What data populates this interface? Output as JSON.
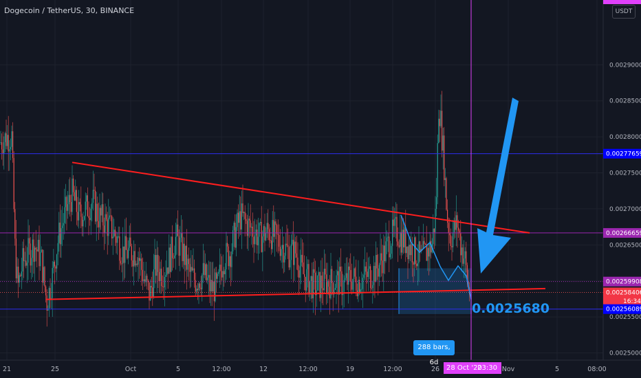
{
  "header": {
    "title": "Dogecoin / TetherUS, 30, BINANCE",
    "currency": "USDT"
  },
  "annotations": {
    "target_price": "0.0025680",
    "range_bars": "288 bars, 6d",
    "crosshair_date": "28 Oct '20",
    "crosshair_time": "23:30"
  },
  "price_tags": [
    {
      "label": "0.00277659",
      "value": 0.00277659,
      "color": "#0000ff"
    },
    {
      "label": "0.00266659",
      "value": 0.00266659,
      "color": "#9c27b0"
    },
    {
      "label": "0.00259908",
      "value": 0.00259908,
      "color": "#9c27b0"
    },
    {
      "label": "0.00258406",
      "value": 0.00258406,
      "color": "#f23645"
    },
    {
      "label": "16:34",
      "value": 0.002572,
      "color": "#f23645"
    },
    {
      "label": "0.00256089",
      "value": 0.00256089,
      "color": "#0000ff"
    }
  ],
  "colors": {
    "background": "#131722",
    "up": "#26a69a",
    "down": "#ef5350",
    "trendline": "#ff1e1e",
    "blue_line": "#2d2df0",
    "purple_line": "#9c27b0",
    "arrow": "#2196f3",
    "crosshair": "#e040fb"
  },
  "chart_data": {
    "type": "candlestick",
    "title": "Dogecoin / TetherUS, 30, BINANCE",
    "interval": "30",
    "ylim": [
      0.00249,
      0.00299
    ],
    "y_ticks": [
      "0.0025000",
      "0.0025500",
      "0.0026000",
      "0.0026500",
      "0.0027000",
      "0.0027500",
      "0.0028000",
      "0.0028500",
      "0.0029000"
    ],
    "x_ticks": [
      "21",
      "25",
      "Oct",
      "5",
      "12:00",
      "12",
      "12:00",
      "19",
      "12:00",
      "26",
      "Nov",
      "5",
      "08:00"
    ],
    "path": [
      [
        0,
        0.002792
      ],
      [
        10,
        0.0028
      ],
      [
        17,
        0.0028
      ],
      [
        22,
        0.00264
      ],
      [
        26,
        0.00259
      ],
      [
        33,
        0.002625
      ],
      [
        42,
        0.00264
      ],
      [
        50,
        0.00265
      ],
      [
        60,
        0.00263
      ],
      [
        68,
        0.00257
      ],
      [
        75,
        0.0026
      ],
      [
        85,
        0.00266
      ],
      [
        97,
        0.0027
      ],
      [
        105,
        0.00272
      ],
      [
        115,
        0.00269
      ],
      [
        125,
        0.0027
      ],
      [
        135,
        0.00271
      ],
      [
        143,
        0.00269
      ],
      [
        155,
        0.00268
      ],
      [
        163,
        0.00267
      ],
      [
        170,
        0.00266
      ],
      [
        178,
        0.00264
      ],
      [
        188,
        0.00264
      ],
      [
        200,
        0.00264
      ],
      [
        210,
        0.0026
      ],
      [
        218,
        0.00258
      ],
      [
        226,
        0.00262
      ],
      [
        236,
        0.00261
      ],
      [
        246,
        0.00263
      ],
      [
        256,
        0.00266
      ],
      [
        266,
        0.00264
      ],
      [
        276,
        0.00261
      ],
      [
        285,
        0.0026
      ],
      [
        296,
        0.00261
      ],
      [
        306,
        0.00259
      ],
      [
        316,
        0.00259
      ],
      [
        324,
        0.00263
      ],
      [
        335,
        0.00264
      ],
      [
        343,
        0.00267
      ],
      [
        350,
        0.00269
      ],
      [
        358,
        0.00268
      ],
      [
        368,
        0.00267
      ],
      [
        378,
        0.00266
      ],
      [
        390,
        0.00267
      ],
      [
        400,
        0.00266
      ],
      [
        410,
        0.00265
      ],
      [
        420,
        0.00264
      ],
      [
        430,
        0.00264
      ],
      [
        440,
        0.00261
      ],
      [
        450,
        0.0026
      ],
      [
        460,
        0.00259
      ],
      [
        470,
        0.002598
      ],
      [
        480,
        0.002598
      ],
      [
        490,
        0.0026
      ],
      [
        500,
        0.002595
      ],
      [
        510,
        0.002605
      ],
      [
        520,
        0.0026
      ],
      [
        530,
        0.002605
      ],
      [
        540,
        0.00261
      ],
      [
        550,
        0.00262
      ],
      [
        560,
        0.00264
      ],
      [
        568,
        0.00266
      ],
      [
        576,
        0.00267
      ],
      [
        584,
        0.00266
      ],
      [
        594,
        0.00265
      ],
      [
        602,
        0.00264
      ],
      [
        612,
        0.00263
      ],
      [
        620,
        0.00264
      ],
      [
        628,
        0.00265
      ],
      [
        634,
        0.0027
      ],
      [
        638,
        0.00285
      ],
      [
        642,
        0.00281
      ],
      [
        646,
        0.00276
      ],
      [
        650,
        0.00269
      ],
      [
        655,
        0.00266
      ],
      [
        660,
        0.00267
      ],
      [
        665,
        0.00268
      ],
      [
        670,
        0.00265
      ],
      [
        676,
        0.00263
      ],
      [
        681,
        0.00259
      ],
      [
        684,
        0.002584
      ]
    ],
    "trendlines": [
      {
        "x": [
          105,
          770
        ],
        "y": [
          0.0027645,
          0.0026666
        ]
      },
      {
        "x": [
          67,
          793
        ],
        "y": [
          0.0025743,
          0.0025893
        ]
      }
    ],
    "horizontal_lines": [
      0.00277659,
      0.00266659,
      0.00259908,
      0.00258406,
      0.00256089
    ],
    "projection": {
      "x": [
        583,
        598,
        610,
        625,
        640,
        652,
        666,
        678,
        685
      ],
      "y": [
        0.0026916,
        0.0026533,
        0.0026398,
        0.0026533,
        0.00262,
        0.0026007,
        0.0026208,
        0.002607,
        0.0025745
      ]
    },
    "target_box": {
      "x": [
        580,
        686
      ],
      "y": [
        0.0026175,
        0.002554
      ],
      "label": "288 bars, 6d"
    }
  }
}
